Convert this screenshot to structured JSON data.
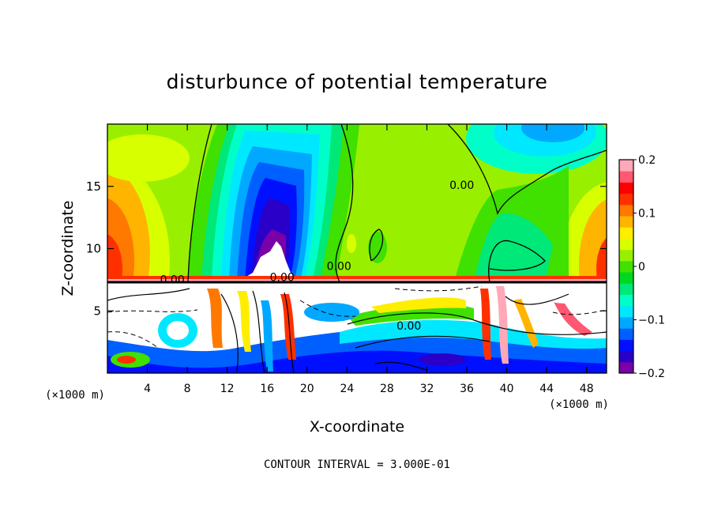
{
  "chart_data": {
    "type": "heatmap",
    "title": "disturbunce of potential temperature",
    "xlabel": "X-coordinate",
    "ylabel": "Z-coordinate",
    "x_unit_left": "(×1000 m)",
    "x_unit_right": "(×1000 m)",
    "footer": "CONTOUR INTERVAL = 3.000E-01",
    "xlim": [
      0,
      50
    ],
    "ylim": [
      0,
      20
    ],
    "x_ticks": [
      4,
      8,
      12,
      16,
      20,
      24,
      28,
      32,
      36,
      40,
      44,
      48
    ],
    "y_ticks": [
      5,
      10,
      15
    ],
    "colorbar": {
      "min": -0.2,
      "max": 0.2,
      "tick_values": [
        0.2,
        0.1,
        0,
        -0.1,
        -0.2
      ],
      "tick_labels": [
        "0.2",
        "0.1",
        "0",
        "−0.1",
        "−0.2"
      ],
      "colors": [
        "#7a00a8",
        "#2a00c8",
        "#0010ff",
        "#0060ff",
        "#00a8ff",
        "#00e8ff",
        "#00ffc8",
        "#00e878",
        "#00d820",
        "#40e000",
        "#98f000",
        "#d8ff00",
        "#ffee00",
        "#ffb400",
        "#ff7800",
        "#ff3000",
        "#ff0000",
        "#ff5870",
        "#ffa8b8"
      ]
    },
    "contour_labels": [
      {
        "text": "0.00",
        "x": 35.5,
        "z": 14.8
      },
      {
        "text": "0.00",
        "x": 6.5,
        "z": 7.2
      },
      {
        "text": "0.00",
        "x": 17.5,
        "z": 7.4
      },
      {
        "text": "0.00",
        "x": 23.2,
        "z": 8.3
      },
      {
        "text": "0.00",
        "x": 30.2,
        "z": 3.5
      }
    ],
    "inversion_height": 7.3
  }
}
